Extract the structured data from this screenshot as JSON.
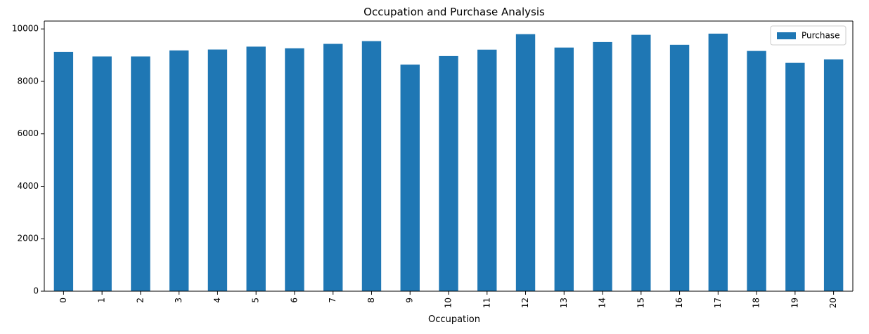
{
  "chart_data": {
    "type": "bar",
    "title": "Occupation and Purchase Analysis",
    "xlabel": "Occupation",
    "ylabel": "",
    "categories": [
      "0",
      "1",
      "2",
      "3",
      "4",
      "5",
      "6",
      "7",
      "8",
      "9",
      "10",
      "11",
      "12",
      "13",
      "14",
      "15",
      "16",
      "17",
      "18",
      "19",
      "20"
    ],
    "series": [
      {
        "name": "Purchase",
        "values": [
          9125,
          8950,
          8950,
          9180,
          9215,
          9325,
          9260,
          9430,
          9535,
          8640,
          8965,
          9210,
          9800,
          9290,
          9500,
          9775,
          9395,
          9820,
          9160,
          8705,
          8840
        ]
      }
    ],
    "ylim": [
      0,
      10300
    ],
    "yticks": [
      0,
      2000,
      4000,
      6000,
      8000,
      10000
    ],
    "grid": false,
    "legend": {
      "position": "top-right"
    },
    "colors": {
      "bar": "#1f77b4",
      "axis": "#000000",
      "background": "#ffffff",
      "legend_border": "#cccccc"
    }
  }
}
